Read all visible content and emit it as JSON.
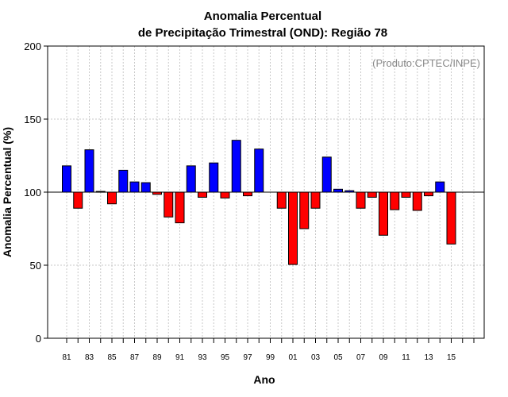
{
  "chart_data": {
    "type": "bar",
    "title_line1": "Anomalia Percentual",
    "title_line2": "de Precipitação Trimestral (OND): Região 78",
    "xlabel": "Ano",
    "ylabel": "Anomalia Percentual (%)",
    "credit": "(Produto:CPTEC/INPE)",
    "baseline": 100,
    "ylim": [
      0,
      200
    ],
    "yticks": [
      0,
      50,
      100,
      150,
      200
    ],
    "x_tick_labels": [
      "81",
      "83",
      "85",
      "87",
      "89",
      "91",
      "93",
      "95",
      "97",
      "99",
      "01",
      "03",
      "05",
      "07",
      "09",
      "11",
      "13",
      "15"
    ],
    "categories": [
      "1981",
      "1982",
      "1983",
      "1984",
      "1985",
      "1986",
      "1987",
      "1988",
      "1989",
      "1990",
      "1991",
      "1992",
      "1993",
      "1994",
      "1995",
      "1996",
      "1997",
      "1998",
      "1999",
      "2000",
      "2001",
      "2002",
      "2003",
      "2004",
      "2005",
      "2006",
      "2007",
      "2008",
      "2009",
      "2010",
      "2011",
      "2012",
      "2013",
      "2014",
      "2015",
      "2016",
      "2017"
    ],
    "values": [
      118,
      89,
      129,
      100.5,
      92,
      115,
      107,
      106.5,
      98.5,
      83,
      79,
      118,
      96.5,
      120,
      96,
      135.5,
      97.5,
      129.5,
      null,
      89,
      50.5,
      75,
      89,
      124,
      102,
      101,
      89,
      96.5,
      70.5,
      88,
      96.5,
      87.5,
      97.5,
      107,
      64.5,
      null,
      null
    ],
    "colors": {
      "above": "#0000ff",
      "below": "#ff0000",
      "grid": "#c8c8c8",
      "credit": "#888888"
    }
  }
}
